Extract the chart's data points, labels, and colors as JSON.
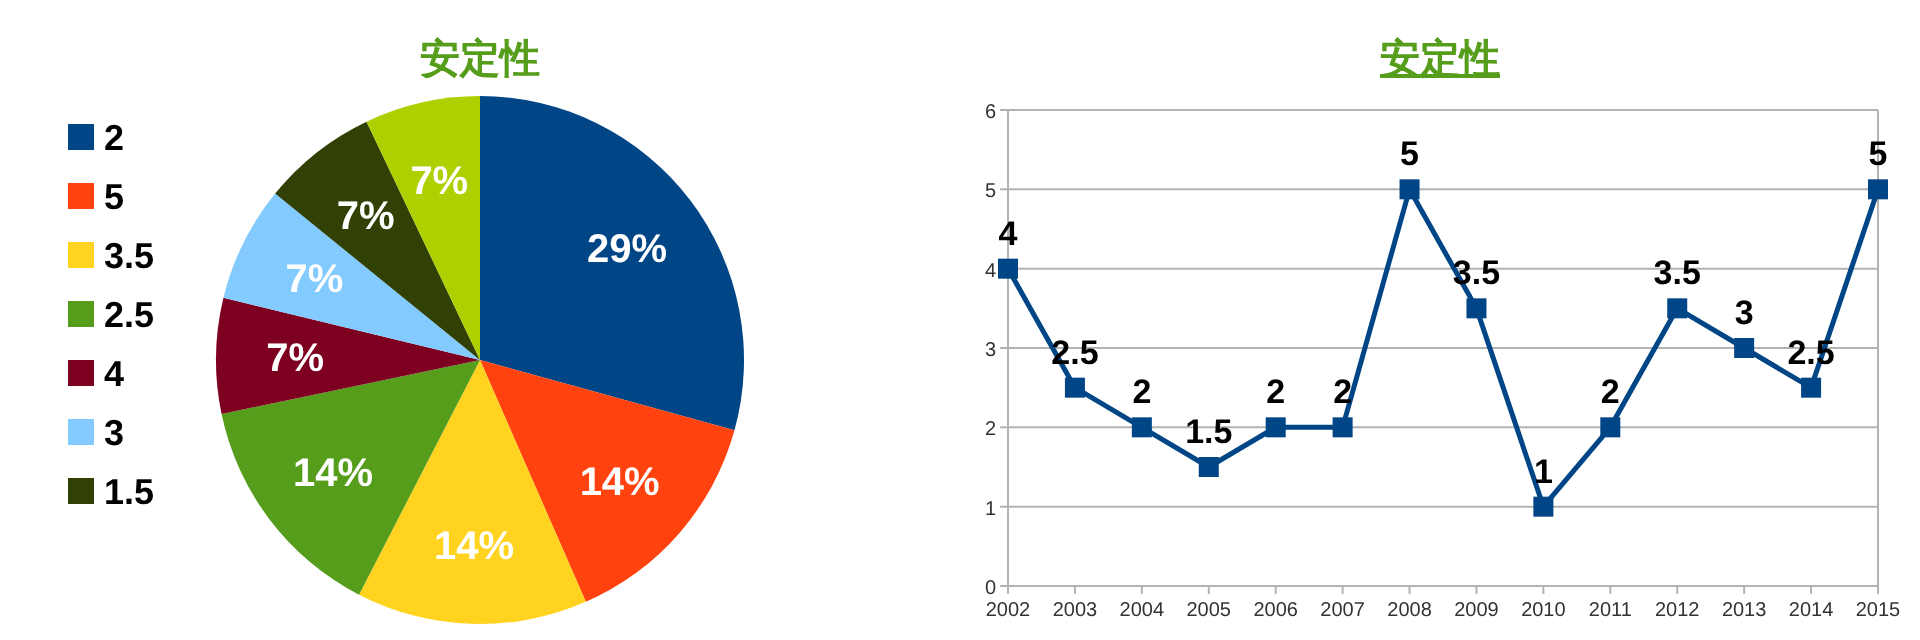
{
  "chart_data": [
    {
      "type": "pie",
      "title": "安定性",
      "legend": "left",
      "categories": [
        "2",
        "5",
        "3.5",
        "2.5",
        "4",
        "3",
        "1.5",
        null
      ],
      "values": [
        29,
        14,
        14,
        14,
        7,
        7,
        7,
        7
      ],
      "value_labels": [
        "29%",
        "14%",
        "14%",
        "14%",
        "7%",
        "7%",
        "7%",
        "7%"
      ],
      "colors": [
        "#004586",
        "#ff420e",
        "#ffd320",
        "#579d1c",
        "#7e0021",
        "#83caff",
        "#314004",
        "#aecf00"
      ]
    },
    {
      "type": "line",
      "title": "安定性",
      "categories": [
        "2002",
        "2003",
        "2004",
        "2005",
        "2006",
        "2007",
        "2008",
        "2009",
        "2010",
        "2011",
        "2012",
        "2013",
        "2014",
        "2015"
      ],
      "series": [
        {
          "color": "#004586",
          "values": [
            4,
            2.5,
            2,
            1.5,
            2,
            2,
            5,
            3.5,
            1,
            2,
            3.5,
            3,
            2.5,
            5
          ]
        }
      ],
      "ylim": [
        0,
        6
      ],
      "yticks": [
        0,
        1,
        2,
        3,
        4,
        5,
        6
      ],
      "grid": "y",
      "marker": "square",
      "line_style": "solid",
      "data_labels": true
    }
  ]
}
